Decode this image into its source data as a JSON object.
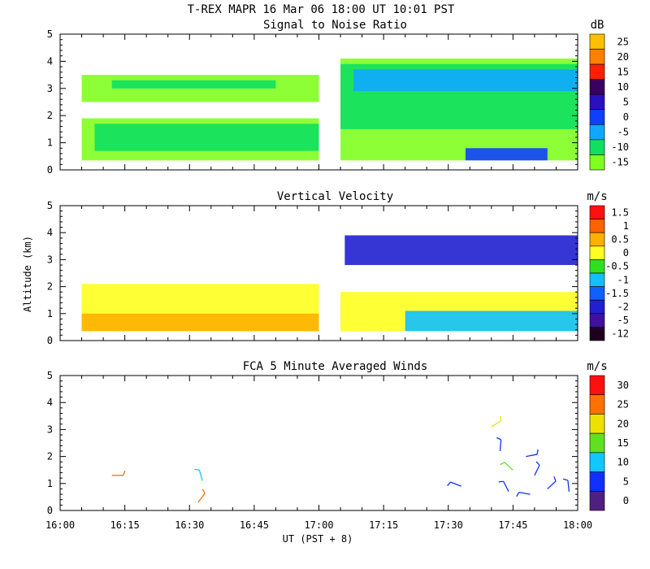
{
  "figure": {
    "title": "T-REX   MAPR 16 Mar 06   18:00 UT   10:01   PST",
    "ylabel": "Altitude (km)",
    "xlabel": "UT  (PST + 8)"
  },
  "chart_data": [
    {
      "type": "heatmap",
      "title": "Signal to Noise Ratio",
      "units": "dB",
      "x_range_min": [
        0,
        120
      ],
      "ylim": [
        0,
        5
      ],
      "yticks": [
        "0",
        "1",
        "2",
        "3",
        "4",
        "5"
      ],
      "colorbar": {
        "levels": [
          "25",
          "20",
          "15",
          "10",
          "5",
          "0",
          "-5",
          "-10",
          "-15"
        ],
        "colors": [
          "#ffc000",
          "#ff8000",
          "#ff2000",
          "#3a0060",
          "#2a10c0",
          "#1040ff",
          "#10a8ff",
          "#10e060",
          "#80ff20"
        ]
      },
      "data_gap_min": [
        61,
        65
      ],
      "regions": [
        {
          "x": [
            5,
            60
          ],
          "y": [
            0.35,
            1.9
          ],
          "level": "-15"
        },
        {
          "x": [
            8,
            60
          ],
          "y": [
            0.7,
            1.7
          ],
          "level": "-10"
        },
        {
          "x": [
            5,
            60
          ],
          "y": [
            2.5,
            3.5
          ],
          "level": "-15"
        },
        {
          "x": [
            12,
            50
          ],
          "y": [
            3.0,
            3.3
          ],
          "level": "-10"
        },
        {
          "x": [
            65,
            120
          ],
          "y": [
            0.35,
            4.1
          ],
          "level": "-15"
        },
        {
          "x": [
            65,
            120
          ],
          "y": [
            1.5,
            3.9
          ],
          "level": "-10"
        },
        {
          "x": [
            68,
            120
          ],
          "y": [
            2.9,
            3.7
          ],
          "level": "-5"
        },
        {
          "x": [
            94,
            113
          ],
          "y": [
            0.35,
            0.8
          ],
          "level": "0"
        }
      ]
    },
    {
      "type": "heatmap",
      "title": "Vertical Velocity",
      "units": "m/s",
      "x_range_min": [
        0,
        120
      ],
      "ylim": [
        0,
        5
      ],
      "yticks": [
        "0",
        "1",
        "2",
        "3",
        "4",
        "5"
      ],
      "colorbar": {
        "levels": [
          "1.5",
          "1",
          "0.5",
          "0",
          "-0.5",
          "-1",
          "-1.5",
          "-2",
          "-5",
          "-12"
        ],
        "colors": [
          "#ff1010",
          "#ff6000",
          "#ffb000",
          "#ffff20",
          "#30e020",
          "#10c0ff",
          "#1060ff",
          "#2020d0",
          "#4010a0",
          "#200020"
        ]
      },
      "regions": [
        {
          "x": [
            5,
            60
          ],
          "y": [
            0.35,
            2.1
          ],
          "level": "0"
        },
        {
          "x": [
            5,
            60
          ],
          "y": [
            0.35,
            1.0
          ],
          "level": "0.5"
        },
        {
          "x": [
            65,
            120
          ],
          "y": [
            0.35,
            1.8
          ],
          "level": "0"
        },
        {
          "x": [
            66,
            120
          ],
          "y": [
            2.8,
            3.9
          ],
          "level": "-2"
        },
        {
          "x": [
            80,
            120
          ],
          "y": [
            0.35,
            1.1
          ],
          "level": "-1"
        }
      ]
    },
    {
      "type": "scatter",
      "title": "FCA 5 Minute Averaged Winds",
      "units": "m/s",
      "x_range_min": [
        0,
        120
      ],
      "ylim": [
        0,
        5
      ],
      "yticks": [
        "0",
        "1",
        "2",
        "3",
        "4",
        "5"
      ],
      "colorbar": {
        "levels": [
          "30",
          "25",
          "20",
          "15",
          "10",
          "5",
          "0"
        ],
        "colors": [
          "#ff1010",
          "#ff7000",
          "#f0e000",
          "#60e020",
          "#10c8ff",
          "#1030ff",
          "#502080"
        ]
      },
      "barbs": [
        {
          "t_min": 12,
          "alt_km": 1.3,
          "level": "25"
        },
        {
          "t_min": 32,
          "alt_km": 0.3,
          "level": "25"
        },
        {
          "t_min": 33,
          "alt_km": 1.1,
          "level": "10"
        },
        {
          "t_min": 93,
          "alt_km": 0.9,
          "level": "5"
        },
        {
          "t_min": 100,
          "alt_km": 3.1,
          "level": "20"
        },
        {
          "t_min": 102,
          "alt_km": 2.2,
          "level": "5"
        },
        {
          "t_min": 105,
          "alt_km": 1.5,
          "level": "15"
        },
        {
          "t_min": 108,
          "alt_km": 2.0,
          "level": "5"
        },
        {
          "t_min": 110,
          "alt_km": 1.3,
          "level": "5"
        },
        {
          "t_min": 104,
          "alt_km": 0.7,
          "level": "5"
        },
        {
          "t_min": 109,
          "alt_km": 0.6,
          "level": "5"
        },
        {
          "t_min": 113,
          "alt_km": 0.8,
          "level": "5"
        },
        {
          "t_min": 118,
          "alt_km": 0.7,
          "level": "5"
        }
      ]
    }
  ],
  "x_axis": {
    "range_min": [
      0,
      120
    ],
    "tick_step_min": 5,
    "labels": [
      {
        "min": 0,
        "text": "16:00"
      },
      {
        "min": 15,
        "text": "16:15"
      },
      {
        "min": 30,
        "text": "16:30"
      },
      {
        "min": 45,
        "text": "16:45"
      },
      {
        "min": 60,
        "text": "17:00"
      },
      {
        "min": 75,
        "text": "17:15"
      },
      {
        "min": 90,
        "text": "17:30"
      },
      {
        "min": 105,
        "text": "17:45"
      },
      {
        "min": 120,
        "text": "18:00"
      }
    ]
  }
}
